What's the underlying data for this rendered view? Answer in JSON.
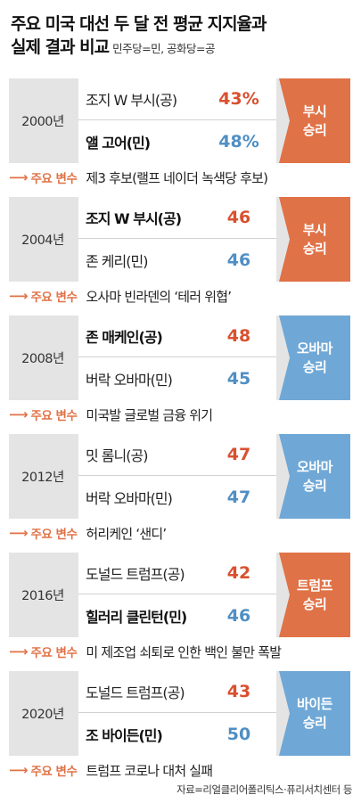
{
  "title": {
    "line1": "주요 미국 대선 두 달 전 평균 지지율과",
    "line2": "실제 결과 비교",
    "note": "민주당=민, 공화당=공"
  },
  "var_label": "주요 변수",
  "source": "자료=리얼클리어폴리틱스·퓨리서치센터 등",
  "colors": {
    "republican": "#e07247",
    "democrat": "#6fa8d6",
    "rep_text": "#d9502f",
    "dem_text": "#4f8fc4"
  },
  "chart_data": {
    "type": "table",
    "title": "주요 미국 대선 두 달 전 평균 지지율과 실제 결과 비교",
    "elections": [
      {
        "year": "2000년",
        "candidates": [
          {
            "name": "조지 W 부시(공)",
            "party": "rep",
            "display": "43%",
            "value": 43,
            "winner": false
          },
          {
            "name": "앨 고어(민)",
            "party": "dem",
            "display": "48%",
            "value": 48,
            "winner": true
          }
        ],
        "result": [
          "부시",
          "승리"
        ],
        "result_party": "rep",
        "variable": "제3 후보(랠프 네이더 녹색당 후보)"
      },
      {
        "year": "2004년",
        "candidates": [
          {
            "name": "조지 W 부시(공)",
            "party": "rep",
            "display": "46",
            "value": 46,
            "winner": true
          },
          {
            "name": "존 케리(민)",
            "party": "dem",
            "display": "46",
            "value": 46,
            "winner": false
          }
        ],
        "result": [
          "부시",
          "승리"
        ],
        "result_party": "rep",
        "variable": "오사마 빈라덴의 ‘테러 위협’"
      },
      {
        "year": "2008년",
        "candidates": [
          {
            "name": "존 매케인(공)",
            "party": "rep",
            "display": "48",
            "value": 48,
            "winner": true
          },
          {
            "name": "버락 오바마(민)",
            "party": "dem",
            "display": "45",
            "value": 45,
            "winner": false
          }
        ],
        "result": [
          "오바마",
          "승리"
        ],
        "result_party": "dem",
        "variable": "미국발 글로벌 금융 위기"
      },
      {
        "year": "2012년",
        "candidates": [
          {
            "name": "밋 롬니(공)",
            "party": "rep",
            "display": "47",
            "value": 47,
            "winner": false
          },
          {
            "name": "버락 오바마(민)",
            "party": "dem",
            "display": "47",
            "value": 47,
            "winner": false
          }
        ],
        "result": [
          "오바마",
          "승리"
        ],
        "result_party": "dem",
        "variable": "허리케인 ‘샌디’"
      },
      {
        "year": "2016년",
        "candidates": [
          {
            "name": "도널드 트럼프(공)",
            "party": "rep",
            "display": "42",
            "value": 42,
            "winner": false
          },
          {
            "name": "힐러리 클린턴(민)",
            "party": "dem",
            "display": "46",
            "value": 46,
            "winner": true
          }
        ],
        "result": [
          "트럼프",
          "승리"
        ],
        "result_party": "rep",
        "variable": "미 제조업 쇠퇴로 인한 백인 불만 폭발"
      },
      {
        "year": "2020년",
        "candidates": [
          {
            "name": "도널드 트럼프(공)",
            "party": "rep",
            "display": "43",
            "value": 43,
            "winner": false
          },
          {
            "name": "조 바이든(민)",
            "party": "dem",
            "display": "50",
            "value": 50,
            "winner": true
          }
        ],
        "result": [
          "바이든",
          "승리"
        ],
        "result_party": "dem",
        "variable": "트럼프 코로나 대처 실패"
      }
    ]
  }
}
